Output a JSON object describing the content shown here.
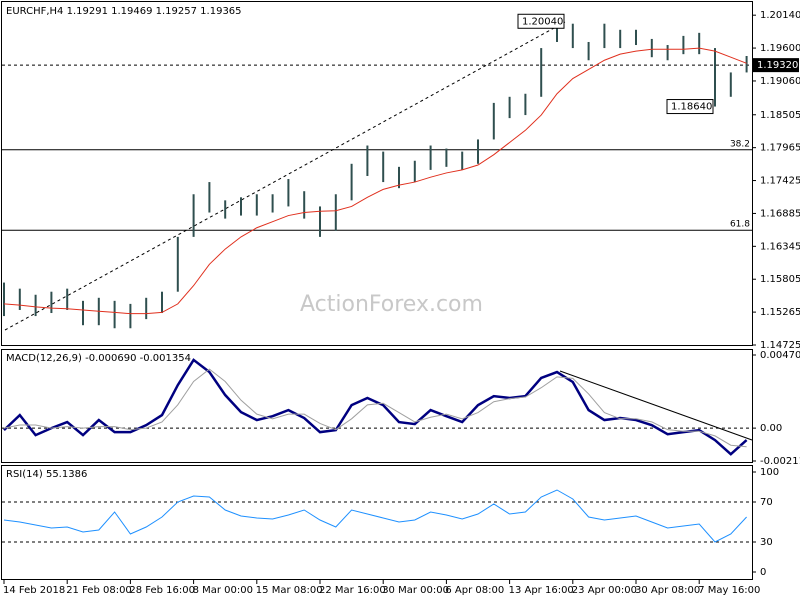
{
  "chart_data": [
    {
      "type": "hlbar",
      "title": "EURCHF,H4  1.19291 1.19469 1.19257 1.19365",
      "watermark": "ActionForex.com",
      "color": "#2f4f4f",
      "high": [
        1.1575,
        1.1565,
        1.1555,
        1.156,
        1.1565,
        1.1545,
        1.155,
        1.1545,
        1.154,
        1.155,
        1.156,
        1.165,
        1.172,
        1.174,
        1.171,
        1.1715,
        1.172,
        1.172,
        1.1745,
        1.1725,
        1.17,
        1.172,
        1.177,
        1.18,
        1.179,
        1.1765,
        1.1775,
        1.18,
        1.1795,
        1.179,
        1.181,
        1.187,
        1.188,
        1.1885,
        1.196,
        1.2004,
        1.2,
        1.197,
        1.2,
        1.199,
        1.199,
        1.1975,
        1.1965,
        1.198,
        1.1985,
        1.196,
        1.192,
        1.1947
      ],
      "low": [
        1.152,
        1.153,
        1.152,
        1.1525,
        1.153,
        1.1505,
        1.1505,
        1.15,
        1.15,
        1.1515,
        1.1525,
        1.156,
        1.165,
        1.169,
        1.168,
        1.1685,
        1.1685,
        1.169,
        1.17,
        1.168,
        1.165,
        1.166,
        1.171,
        1.175,
        1.174,
        1.173,
        1.174,
        1.176,
        1.1765,
        1.176,
        1.177,
        1.181,
        1.1845,
        1.185,
        1.188,
        1.197,
        1.196,
        1.194,
        1.196,
        1.196,
        1.1965,
        1.1945,
        1.194,
        1.195,
        1.195,
        1.1864,
        1.188,
        1.192
      ],
      "ma_color": "#e0301e",
      "ma": [
        1.154,
        1.1538,
        1.1535,
        1.1533,
        1.1532,
        1.153,
        1.1528,
        1.1526,
        1.1524,
        1.1524,
        1.1526,
        1.154,
        1.157,
        1.1605,
        1.163,
        1.165,
        1.1665,
        1.1675,
        1.1685,
        1.169,
        1.1692,
        1.1693,
        1.17,
        1.1715,
        1.1728,
        1.1735,
        1.174,
        1.1748,
        1.1755,
        1.176,
        1.1768,
        1.1785,
        1.1805,
        1.1825,
        1.185,
        1.1885,
        1.191,
        1.1925,
        1.194,
        1.195,
        1.1955,
        1.1958,
        1.1958,
        1.1958,
        1.196,
        1.1955,
        1.1945,
        1.1935
      ],
      "ylim": [
        1.14725,
        1.2034
      ],
      "yticks": [
        {
          "value": 1.2014,
          "label": "1.20140"
        },
        {
          "value": 1.196,
          "label": "1.19600"
        },
        {
          "value": 1.1906,
          "label": "1.19060"
        },
        1.18505,
        1.17965,
        1.17425,
        1.16885,
        1.16345,
        1.15805,
        1.15265,
        1.14725
      ],
      "last": {
        "value": 1.1932,
        "label": "1.19320"
      },
      "annotations": [
        {
          "value": 1.2004,
          "label": "1.20040"
        },
        {
          "value": 1.1864,
          "label": "1.18640"
        }
      ],
      "fib_levels": [
        {
          "price": 1.1793,
          "label": "38.2"
        },
        {
          "price": 1.1661,
          "label": "61.8"
        }
      ]
    },
    {
      "type": "line",
      "title": "MACD(12,26,9) -0.000690 -0.001354",
      "series": [
        {
          "color": "#000080",
          "values": [
            -0.00013,
            0.00084,
            -0.00045,
            0,
            0.00039,
            -0.00045,
            0.00052,
            -0.00026,
            -0.00026,
            0.00019,
            0.00084,
            0.00277,
            0.00439,
            0.00361,
            0.00213,
            0.00103,
            0.00052,
            0.00077,
            0.00116,
            0.00065,
            -0.00026,
            -0.00013,
            0.00148,
            0.00194,
            0.00148,
            0.00039,
            0.00026,
            0.00116,
            0.00077,
            0.00039,
            0.00148,
            0.00206,
            0.00194,
            0.00206,
            0.00323,
            0.00361,
            0.00297,
            0.00116,
            0.00052,
            0.00065,
            0.00052,
            0.00019,
            -0.00039,
            -0.00026,
            -0.00013,
            -0.00077,
            -0.00168,
            -0.00077
          ]
        },
        {
          "color": "#a0a0a0",
          "values": [
            0,
            0.0002,
            0.0002,
            0,
            0.0001,
            0,
            0.0001,
            0.0001,
            -0.0001,
            0,
            0.0004,
            0.0015,
            0.003,
            0.0038,
            0.003,
            0.0018,
            0.0009,
            0.0006,
            0.0009,
            0.0009,
            0.0003,
            -0.0001,
            0.0006,
            0.0015,
            0.0016,
            0.001,
            0.0004,
            0.0007,
            0.0009,
            0.0006,
            0.001,
            0.0017,
            0.0019,
            0.002,
            0.0026,
            0.0033,
            0.0032,
            0.0022,
            0.001,
            0.0006,
            0.0006,
            0.0004,
            -0.0001,
            -0.0002,
            -0.0002,
            -0.0005,
            -0.0011,
            -0.0012
          ]
        }
      ],
      "ylim": [
        -0.002116,
        0.004707
      ],
      "yticks": [
        0.004707,
        {
          "value": 0,
          "label": "0.00"
        },
        -0.002116
      ]
    },
    {
      "type": "line",
      "title": "RSI(14) 55.1386",
      "categories": [
        "14 Feb 2018",
        null,
        null,
        null,
        "21 Feb 08:00",
        null,
        null,
        null,
        "28 Feb 16:00",
        null,
        null,
        null,
        "8 Mar 00:00",
        null,
        null,
        null,
        "15 Mar 08:00",
        null,
        null,
        null,
        "22 Mar 16:00",
        null,
        null,
        null,
        "30 Mar 00:00",
        null,
        null,
        null,
        "6 Apr 08:00",
        null,
        null,
        null,
        "13 Apr 16:00",
        null,
        null,
        null,
        "23 Apr 00:00",
        null,
        null,
        null,
        "30 Apr 08:00",
        null,
        null,
        null,
        "7 May 16:00",
        null,
        null,
        null
      ],
      "series": [
        {
          "color": "#1e90ff",
          "values": [
            52,
            50,
            47,
            44,
            45,
            40,
            42,
            60,
            38,
            45,
            55,
            70,
            76,
            75,
            62,
            56,
            54,
            53,
            57,
            62,
            52,
            45,
            62,
            58,
            54,
            50,
            52,
            60,
            57,
            53,
            58,
            68,
            58,
            60,
            75,
            82,
            73,
            55,
            52,
            54,
            56,
            50,
            44,
            46,
            48,
            30,
            38,
            55
          ]
        }
      ],
      "ylim": [
        0,
        100
      ],
      "yticks": [
        100,
        70,
        30,
        0
      ]
    }
  ]
}
